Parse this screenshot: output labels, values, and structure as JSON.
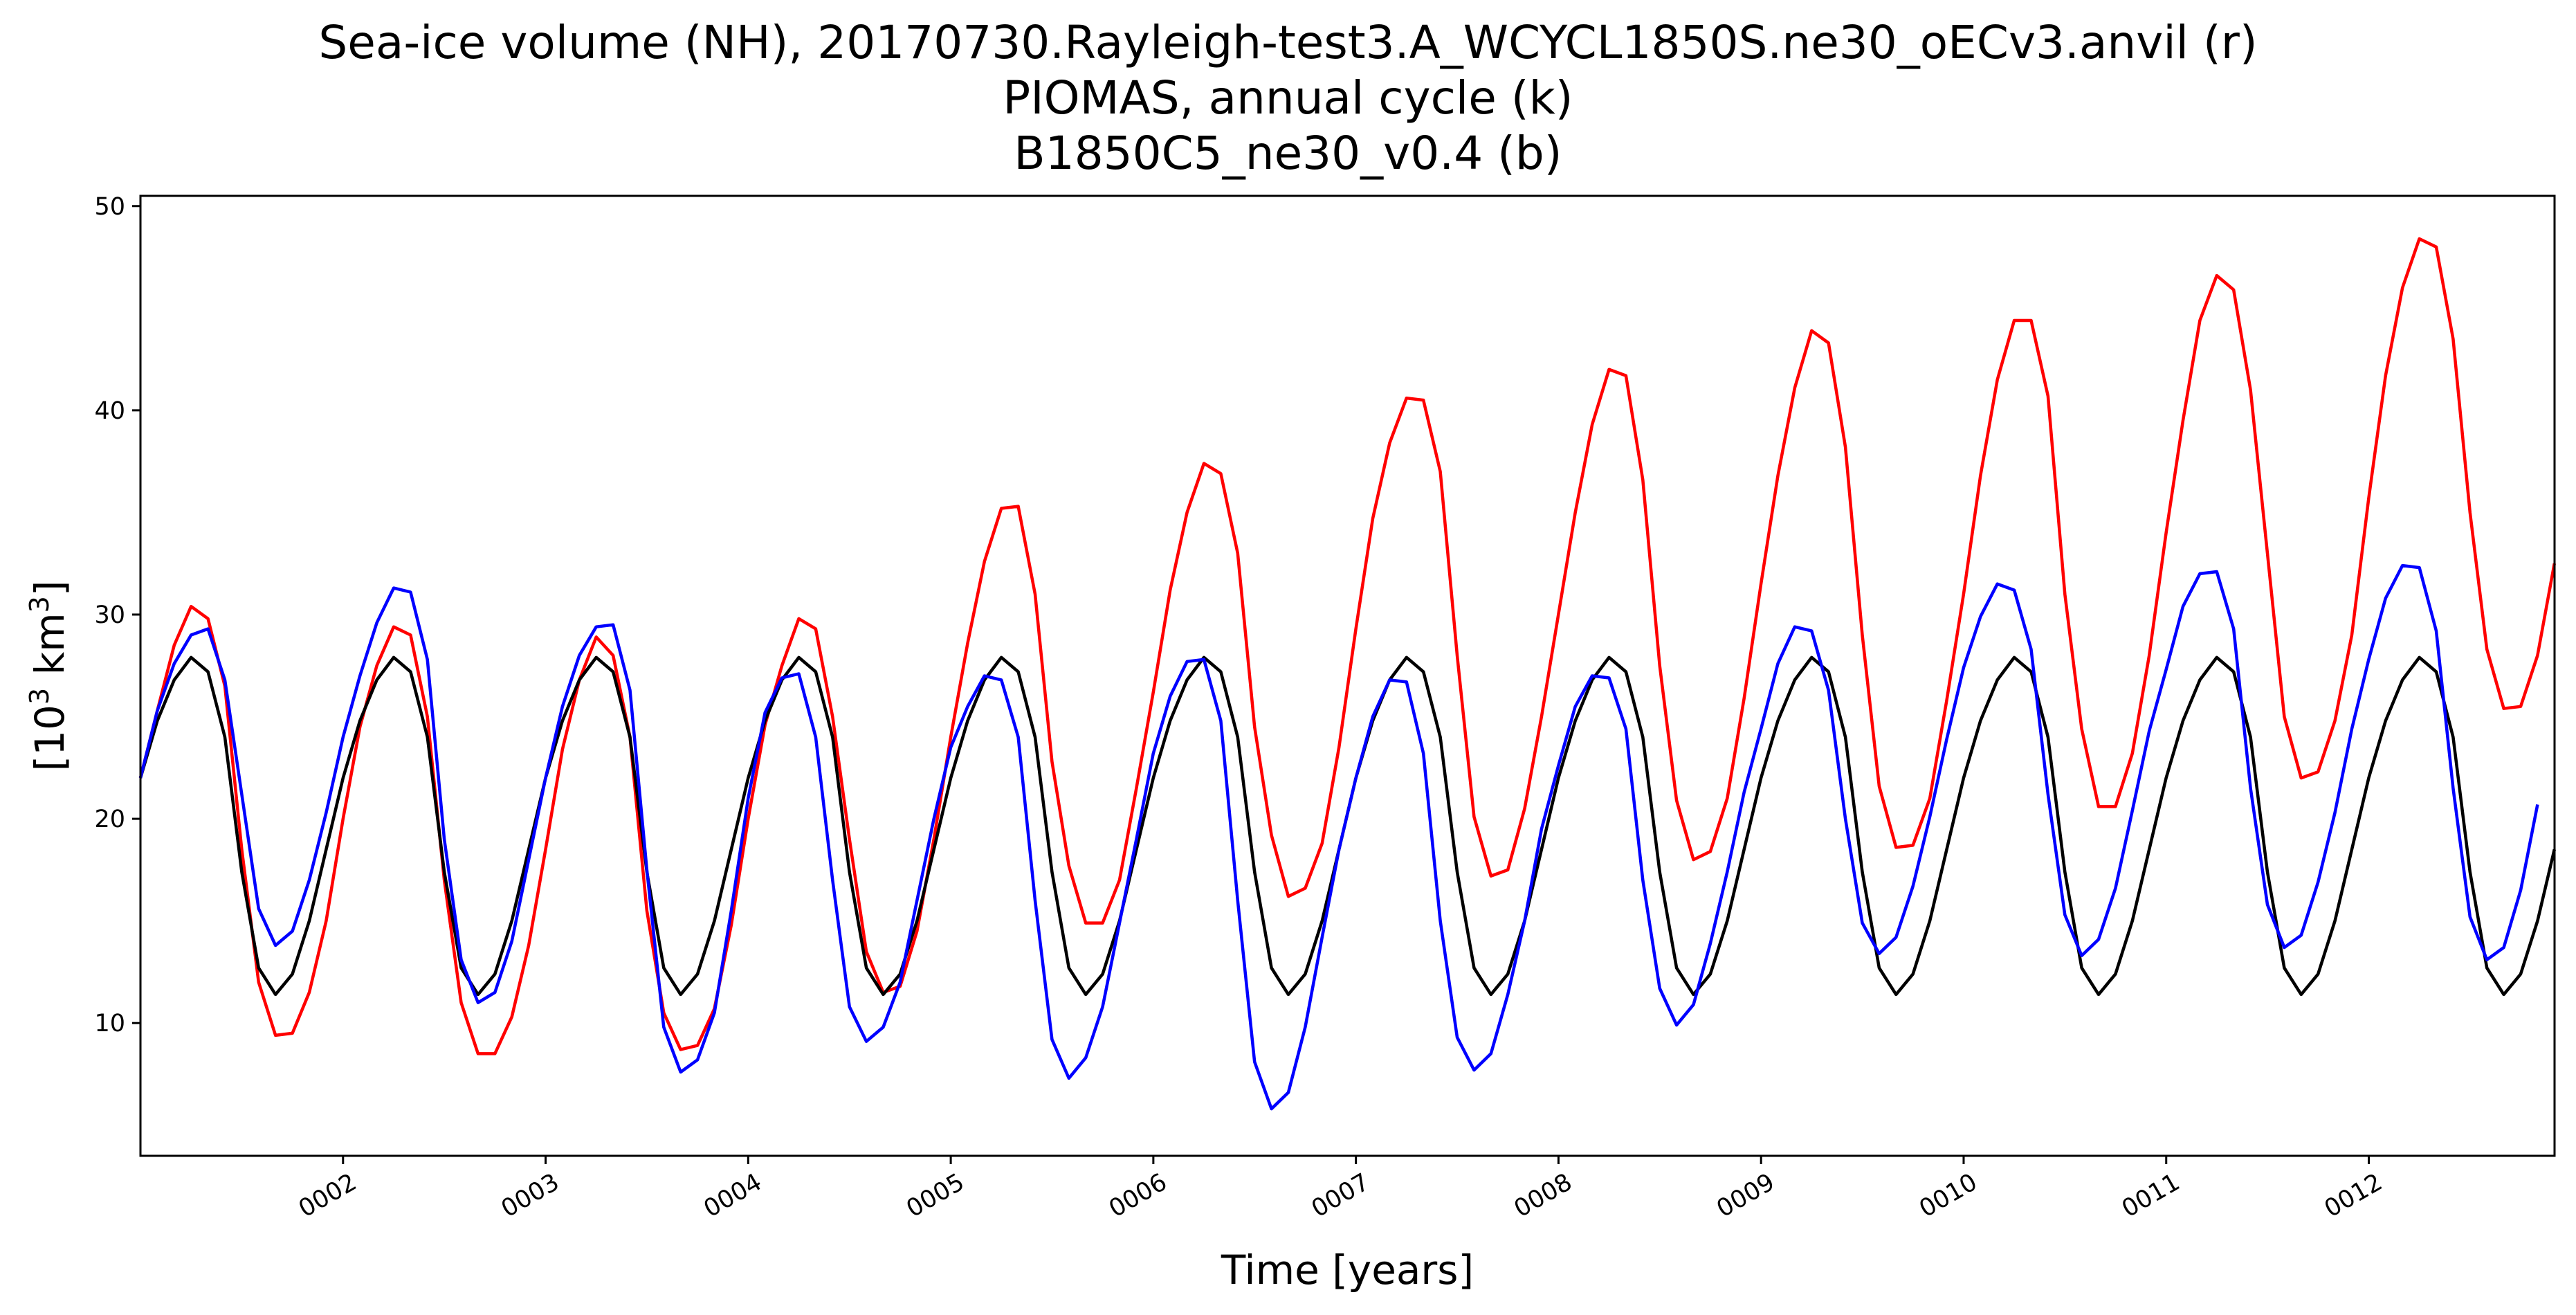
{
  "chart_data": {
    "type": "line",
    "title_lines": [
      "Sea-ice volume (NH), 20170730.Rayleigh-test3.A_WCYCL1850S.ne30_oECv3.anvil (r)",
      "PIOMAS, annual cycle (k)",
      "B1850C5_ne30_v0.4 (b)"
    ],
    "xlabel": "Time [years]",
    "ylabel": {
      "prefix": "[10",
      "superscript_1": "3",
      "middle": " km",
      "superscript_2": "3",
      "suffix": "]"
    },
    "xlim": [
      1.0,
      12.917
    ],
    "ylim": [
      3.5,
      50.5
    ],
    "x_ticks": [
      {
        "value": 2,
        "label": "0002"
      },
      {
        "value": 3,
        "label": "0003"
      },
      {
        "value": 4,
        "label": "0004"
      },
      {
        "value": 5,
        "label": "0005"
      },
      {
        "value": 6,
        "label": "0006"
      },
      {
        "value": 7,
        "label": "0007"
      },
      {
        "value": 8,
        "label": "0008"
      },
      {
        "value": 9,
        "label": "0009"
      },
      {
        "value": 10,
        "label": "0010"
      },
      {
        "value": 11,
        "label": "0011"
      },
      {
        "value": 12,
        "label": "0012"
      }
    ],
    "y_ticks": [
      {
        "value": 10,
        "label": "10"
      },
      {
        "value": 20,
        "label": "20"
      },
      {
        "value": 30,
        "label": "30"
      },
      {
        "value": 40,
        "label": "40"
      },
      {
        "value": 50,
        "label": "50"
      }
    ],
    "grid": false,
    "legend": "none",
    "x_step": 0.08333,
    "series": [
      {
        "color": "#ff0000",
        "values": [
          22.0,
          25.3,
          28.5,
          30.4,
          29.8,
          26.5,
          18.5,
          12.0,
          9.4,
          9.5,
          11.5,
          15.0,
          20.0,
          24.5,
          27.5,
          29.4,
          29.0,
          25.0,
          17.0,
          11.0,
          8.5,
          8.5,
          10.3,
          13.8,
          18.5,
          23.4,
          26.8,
          28.9,
          28.0,
          24.0,
          15.5,
          10.5,
          8.7,
          8.9,
          10.7,
          14.8,
          20.0,
          24.6,
          27.5,
          29.8,
          29.3,
          25.0,
          19.0,
          13.5,
          11.5,
          11.8,
          14.5,
          19.0,
          24.0,
          28.6,
          32.6,
          35.2,
          35.3,
          31.0,
          22.8,
          17.7,
          14.9,
          14.9,
          17.0,
          21.5,
          26.2,
          31.2,
          35.0,
          37.4,
          36.9,
          33.0,
          24.5,
          19.2,
          16.2,
          16.6,
          18.8,
          23.5,
          29.3,
          34.7,
          38.4,
          40.6,
          40.5,
          37.0,
          28.0,
          20.1,
          17.2,
          17.5,
          20.5,
          25.0,
          30.0,
          35.0,
          39.3,
          42.0,
          41.7,
          36.6,
          27.5,
          20.9,
          18.0,
          18.4,
          21.0,
          25.9,
          31.5,
          36.8,
          41.1,
          43.9,
          43.3,
          38.2,
          29.0,
          21.6,
          18.6,
          18.7,
          21.0,
          25.8,
          31.0,
          36.8,
          41.5,
          44.4,
          44.4,
          40.7,
          31.0,
          24.4,
          20.6,
          20.6,
          23.2,
          28.0,
          34.0,
          39.5,
          44.4,
          46.6,
          45.9,
          41.0,
          33.0,
          25.0,
          22.0,
          22.3,
          24.8,
          29.0,
          35.7,
          41.7,
          46.0,
          48.4,
          48.0,
          43.5,
          35.0,
          28.3,
          25.4,
          25.5,
          28.0,
          32.5
        ]
      },
      {
        "color": "#000000",
        "values": [
          22.0,
          24.8,
          26.8,
          27.9,
          27.2,
          24.0,
          17.4,
          12.7,
          11.4,
          12.4,
          15.0,
          18.5,
          22.0,
          24.8,
          26.8,
          27.9,
          27.2,
          24.0,
          17.4,
          12.7,
          11.4,
          12.4,
          15.0,
          18.5,
          22.0,
          24.8,
          26.8,
          27.9,
          27.2,
          24.0,
          17.4,
          12.7,
          11.4,
          12.4,
          15.0,
          18.5,
          22.0,
          24.8,
          26.8,
          27.9,
          27.2,
          24.0,
          17.4,
          12.7,
          11.4,
          12.4,
          15.0,
          18.5,
          22.0,
          24.8,
          26.8,
          27.9,
          27.2,
          24.0,
          17.4,
          12.7,
          11.4,
          12.4,
          15.0,
          18.5,
          22.0,
          24.8,
          26.8,
          27.9,
          27.2,
          24.0,
          17.4,
          12.7,
          11.4,
          12.4,
          15.0,
          18.5,
          22.0,
          24.8,
          26.8,
          27.9,
          27.2,
          24.0,
          17.4,
          12.7,
          11.4,
          12.4,
          15.0,
          18.5,
          22.0,
          24.8,
          26.8,
          27.9,
          27.2,
          24.0,
          17.4,
          12.7,
          11.4,
          12.4,
          15.0,
          18.5,
          22.0,
          24.8,
          26.8,
          27.9,
          27.2,
          24.0,
          17.4,
          12.7,
          11.4,
          12.4,
          15.0,
          18.5,
          22.0,
          24.8,
          26.8,
          27.9,
          27.2,
          24.0,
          17.4,
          12.7,
          11.4,
          12.4,
          15.0,
          18.5,
          22.0,
          24.8,
          26.8,
          27.9,
          27.2,
          24.0,
          17.4,
          12.7,
          11.4,
          12.4,
          15.0,
          18.5,
          22.0,
          24.8,
          26.8,
          27.9,
          27.2,
          24.0,
          17.4,
          12.7,
          11.4,
          12.4,
          15.0,
          18.5
        ]
      },
      {
        "color": "#0000ff",
        "values": [
          22.0,
          25.3,
          27.6,
          29.0,
          29.3,
          26.8,
          21.2,
          15.6,
          13.8,
          14.5,
          17.0,
          20.3,
          24.0,
          27.0,
          29.6,
          31.3,
          31.1,
          27.8,
          19.0,
          13.1,
          11.0,
          11.5,
          14.0,
          18.0,
          22.0,
          25.5,
          28.0,
          29.4,
          29.5,
          26.3,
          17.5,
          9.8,
          7.6,
          8.2,
          10.5,
          15.5,
          21.0,
          25.2,
          26.9,
          27.1,
          24.0,
          17.0,
          10.8,
          9.1,
          9.8,
          12.0,
          16.0,
          20.0,
          23.5,
          25.5,
          27.0,
          26.8,
          24.0,
          16.0,
          9.2,
          7.3,
          8.3,
          10.8,
          14.9,
          19.0,
          23.2,
          26.0,
          27.7,
          27.8,
          24.8,
          16.0,
          8.1,
          5.8,
          6.6,
          9.8,
          14.2,
          18.5,
          22.0,
          25.0,
          26.8,
          26.7,
          23.2,
          15.0,
          9.3,
          7.7,
          8.5,
          11.4,
          15.0,
          19.5,
          22.6,
          25.5,
          27.0,
          26.9,
          24.4,
          17.0,
          11.7,
          9.9,
          10.9,
          13.9,
          17.4,
          21.3,
          24.4,
          27.6,
          29.4,
          29.2,
          26.3,
          20.0,
          14.9,
          13.4,
          14.2,
          16.7,
          20.1,
          23.9,
          27.4,
          29.9,
          31.5,
          31.2,
          28.3,
          21.2,
          15.3,
          13.3,
          14.1,
          16.6,
          20.4,
          24.3,
          27.3,
          30.4,
          32.0,
          32.1,
          29.3,
          21.5,
          15.8,
          13.7,
          14.3,
          16.9,
          20.3,
          24.4,
          27.8,
          30.8,
          32.4,
          32.3,
          29.2,
          21.5,
          15.2,
          13.1,
          13.7,
          16.5,
          20.7
        ]
      }
    ]
  }
}
